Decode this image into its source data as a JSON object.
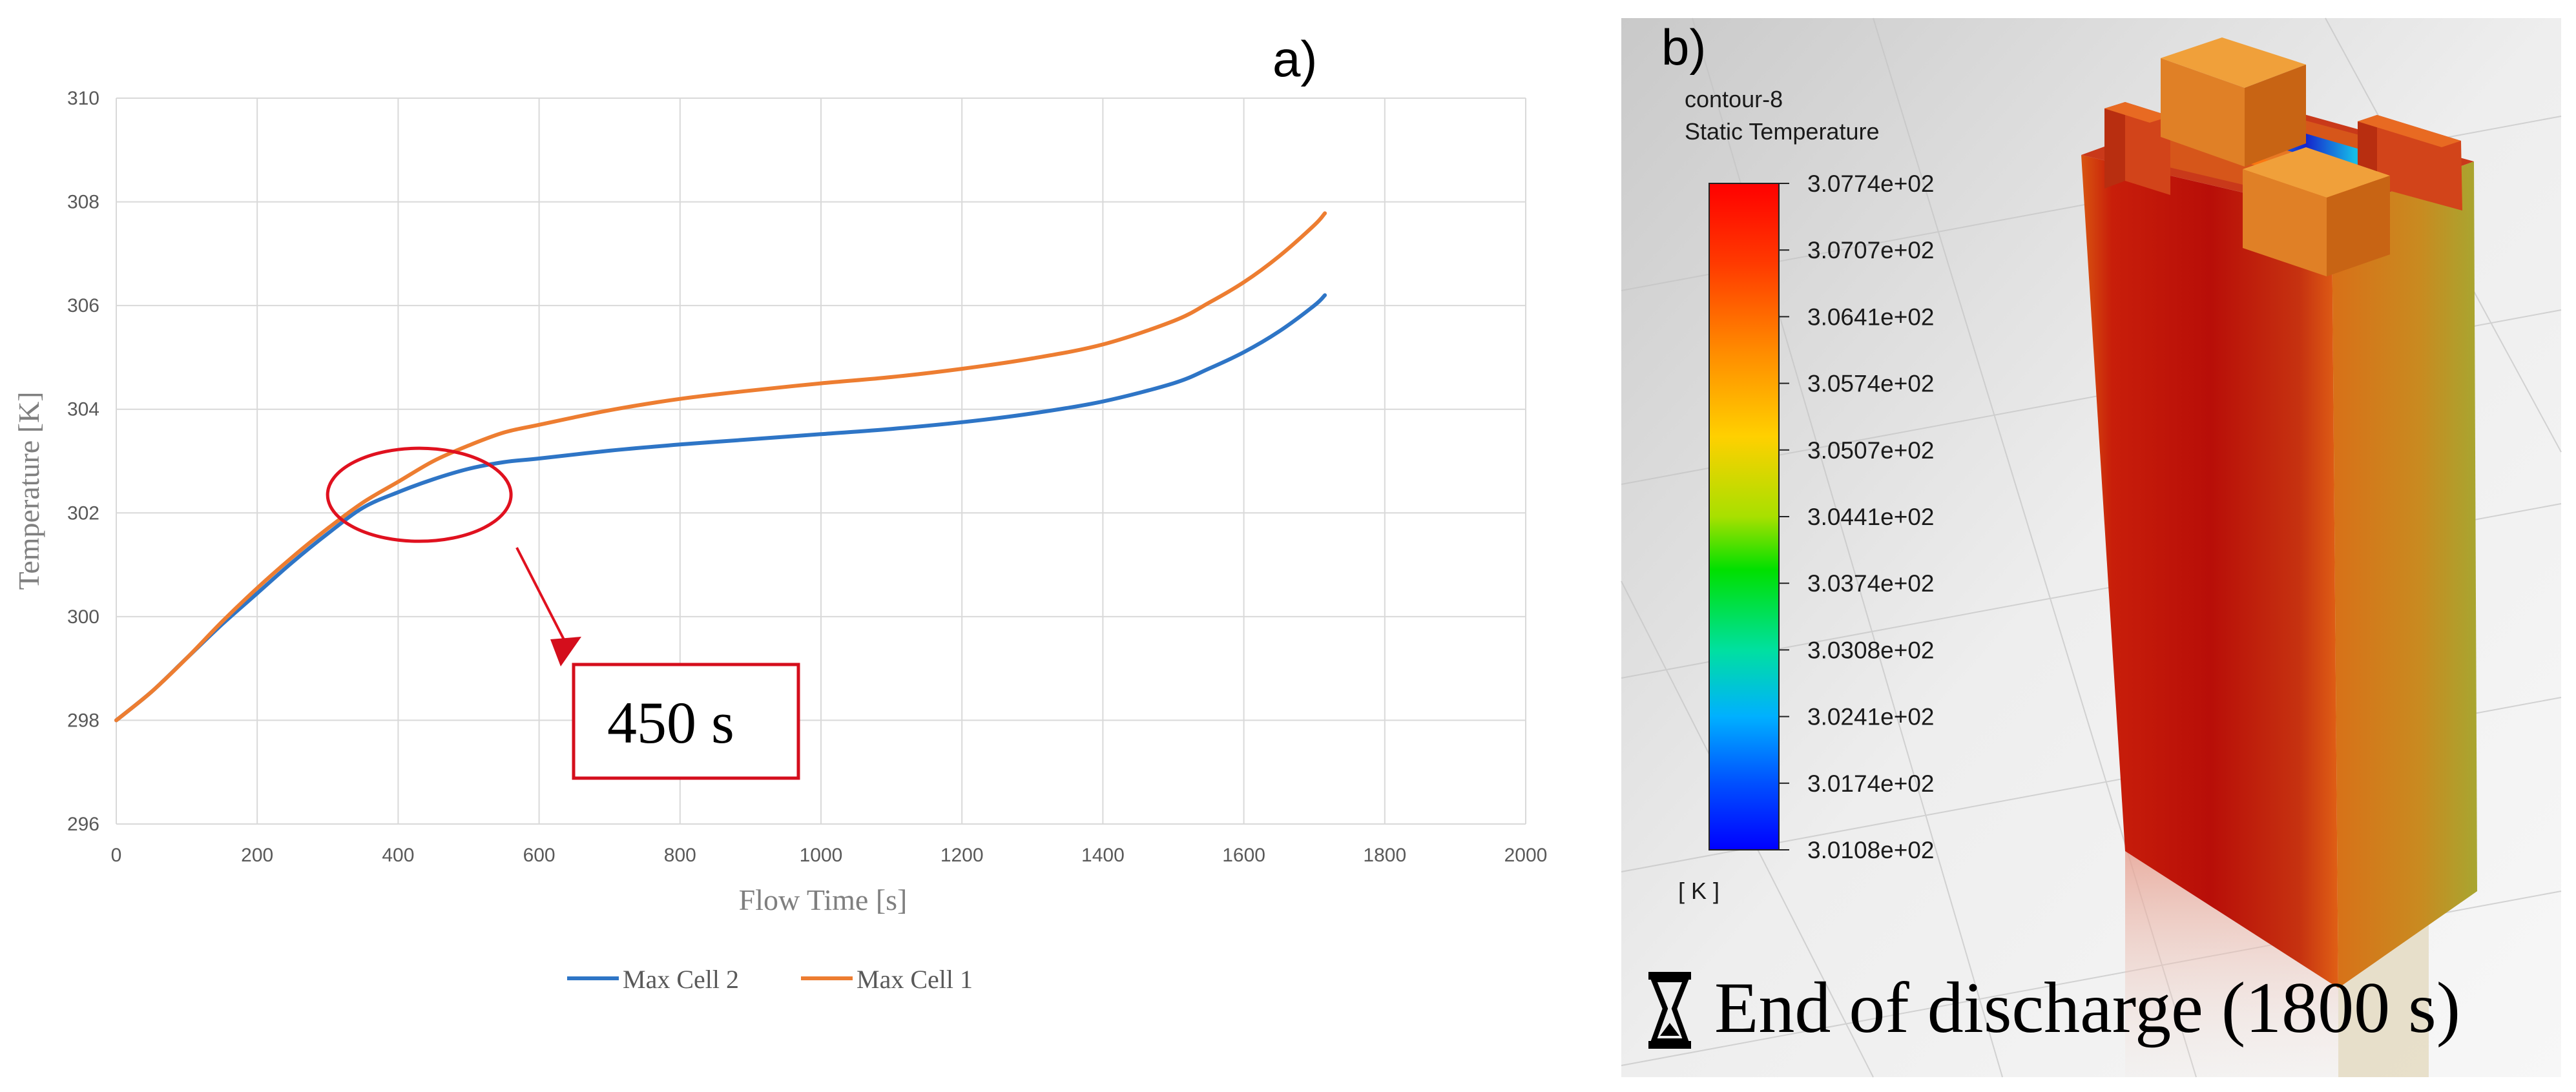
{
  "panel_a_label": "a)",
  "panel_b_label": "b)",
  "chart_data": {
    "type": "line",
    "title": "",
    "xlabel": "Flow Time [s]",
    "ylabel": "Temperature [K]",
    "xlim": [
      0,
      2000
    ],
    "ylim": [
      296,
      310
    ],
    "x_ticks": [
      "0",
      "200",
      "400",
      "600",
      "800",
      "1000",
      "1200",
      "1400",
      "1600",
      "1800",
      "2000"
    ],
    "y_ticks": [
      "296",
      "298",
      "300",
      "302",
      "304",
      "306",
      "308",
      "310"
    ],
    "grid": true,
    "legend_position": "bottom",
    "series": [
      {
        "name": "Max Cell 2",
        "color": "#2e75c6",
        "x": [
          0,
          50,
          100,
          150,
          200,
          250,
          300,
          350,
          400,
          450,
          500,
          550,
          600,
          700,
          800,
          900,
          1000,
          1100,
          1200,
          1300,
          1400,
          1500,
          1550,
          1600,
          1650,
          1700,
          1715
        ],
        "y": [
          298.0,
          298.55,
          299.2,
          299.85,
          300.45,
          301.05,
          301.6,
          302.1,
          302.4,
          302.65,
          302.85,
          302.98,
          303.05,
          303.2,
          303.32,
          303.42,
          303.52,
          303.62,
          303.75,
          303.92,
          304.15,
          304.5,
          304.78,
          305.1,
          305.5,
          306.0,
          306.2
        ]
      },
      {
        "name": "Max Cell 1",
        "color": "#ed7d31",
        "x": [
          0,
          50,
          100,
          150,
          200,
          250,
          300,
          350,
          400,
          450,
          500,
          550,
          600,
          700,
          800,
          900,
          1000,
          1100,
          1200,
          1300,
          1400,
          1500,
          1550,
          1600,
          1650,
          1700,
          1715
        ],
        "y": [
          298.0,
          298.55,
          299.2,
          299.9,
          300.55,
          301.15,
          301.7,
          302.2,
          302.6,
          303.0,
          303.3,
          303.55,
          303.7,
          303.98,
          304.2,
          304.36,
          304.5,
          304.62,
          304.78,
          304.98,
          305.25,
          305.7,
          306.05,
          306.45,
          306.95,
          307.55,
          307.78
        ]
      }
    ],
    "annotation": {
      "text": "450 s",
      "circle_center_x": 430,
      "circle_center_y": 302.35
    }
  },
  "colorbar": {
    "title_line1": "contour-8",
    "title_line2": "Static Temperature",
    "unit": "[ K ]",
    "labels": [
      "3.0774e+02",
      "3.0707e+02",
      "3.0641e+02",
      "3.0574e+02",
      "3.0507e+02",
      "3.0441e+02",
      "3.0374e+02",
      "3.0308e+02",
      "3.0241e+02",
      "3.0174e+02",
      "3.0108e+02"
    ]
  },
  "caption": "End of discharge (1800 s)",
  "icons": {
    "caption_icon": "hourglass-icon"
  }
}
